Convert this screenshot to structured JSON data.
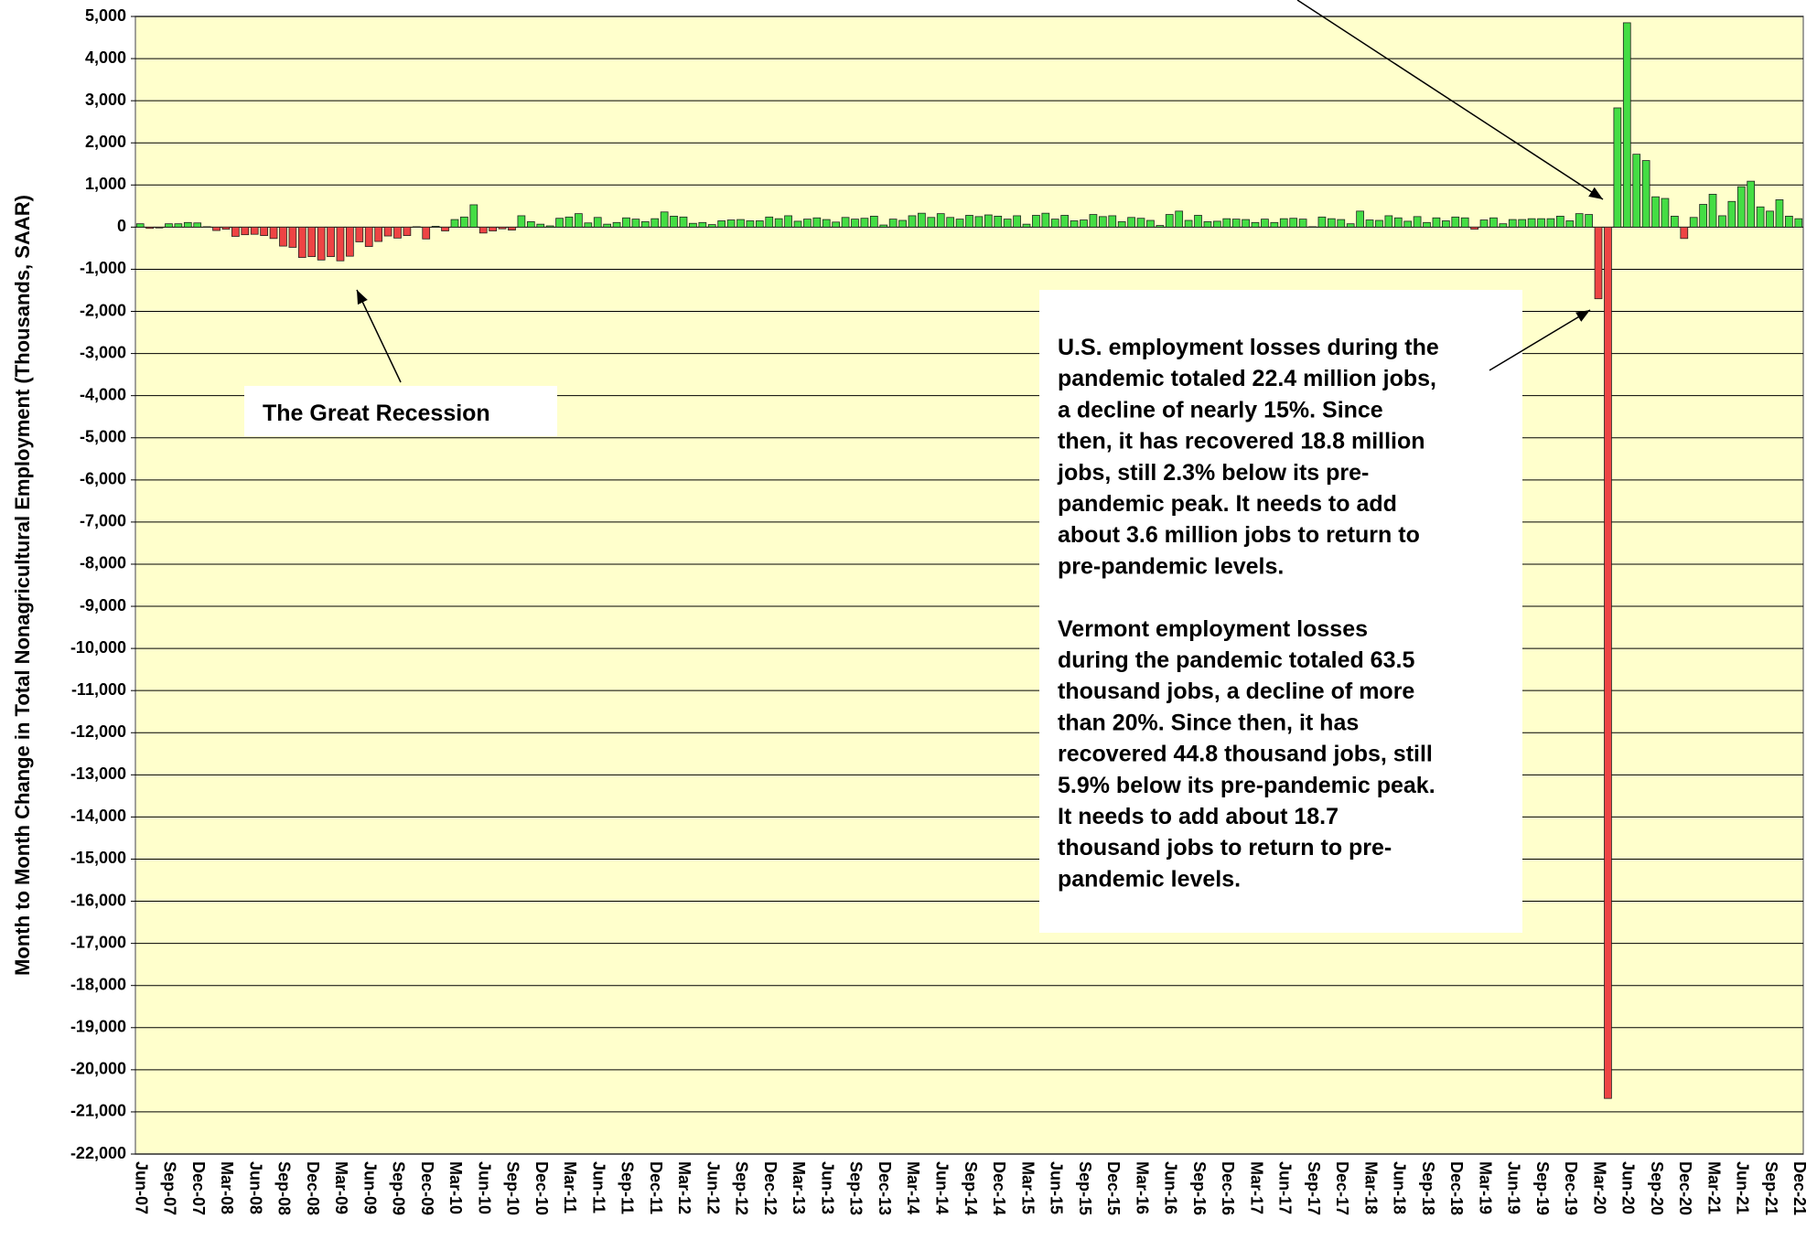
{
  "chart_data": {
    "type": "bar",
    "ylabel": "Month to Month Change in Total Nonagricultural Employment (Thousands, SAAR)",
    "categories": [
      "Jun-07",
      null,
      null,
      "Sep-07",
      null,
      null,
      "Dec-07",
      null,
      null,
      "Mar-08",
      null,
      null,
      "Jun-08",
      null,
      null,
      "Sep-08",
      null,
      null,
      "Dec-08",
      null,
      null,
      "Mar-09",
      null,
      null,
      "Jun-09",
      null,
      null,
      "Sep-09",
      null,
      null,
      "Dec-09",
      null,
      null,
      "Mar-10",
      null,
      null,
      "Jun-10",
      null,
      null,
      "Sep-10",
      null,
      null,
      "Dec-10",
      null,
      null,
      "Mar-11",
      null,
      null,
      "Jun-11",
      null,
      null,
      "Sep-11",
      null,
      null,
      "Dec-11",
      null,
      null,
      "Mar-12",
      null,
      null,
      "Jun-12",
      null,
      null,
      "Sep-12",
      null,
      null,
      "Dec-12",
      null,
      null,
      "Mar-13",
      null,
      null,
      "Jun-13",
      null,
      null,
      "Sep-13",
      null,
      null,
      "Dec-13",
      null,
      null,
      "Mar-14",
      null,
      null,
      "Jun-14",
      null,
      null,
      "Sep-14",
      null,
      null,
      "Dec-14",
      null,
      null,
      "Mar-15",
      null,
      null,
      "Jun-15",
      null,
      null,
      "Sep-15",
      null,
      null,
      "Dec-15",
      null,
      null,
      "Mar-16",
      null,
      null,
      "Jun-16",
      null,
      null,
      "Sep-16",
      null,
      null,
      "Dec-16",
      null,
      null,
      "Mar-17",
      null,
      null,
      "Jun-17",
      null,
      null,
      "Sep-17",
      null,
      null,
      "Dec-17",
      null,
      null,
      "Mar-18",
      null,
      null,
      "Jun-18",
      null,
      null,
      "Sep-18",
      null,
      null,
      "Dec-18",
      null,
      null,
      "Mar-19",
      null,
      null,
      "Jun-19",
      null,
      null,
      "Sep-19",
      null,
      null,
      "Dec-19",
      null,
      null,
      "Mar-20",
      null,
      null,
      "Jun-20",
      null,
      null,
      "Sep-20",
      null,
      null,
      "Dec-20",
      null,
      null,
      "Mar-21",
      null,
      null,
      "Jun-21",
      null,
      null,
      "Sep-21",
      null,
      null,
      "Dec-21"
    ],
    "values": [
      80,
      -30,
      -20,
      80,
      80,
      110,
      100,
      10,
      -80,
      -50,
      -220,
      -180,
      -170,
      -200,
      -270,
      -450,
      -480,
      -720,
      -700,
      -780,
      -700,
      -800,
      -690,
      -350,
      -460,
      -340,
      -210,
      -260,
      -200,
      10,
      -280,
      20,
      -90,
      180,
      240,
      530,
      -140,
      -90,
      -40,
      -70,
      270,
      130,
      70,
      30,
      210,
      240,
      320,
      100,
      230,
      70,
      110,
      220,
      190,
      130,
      200,
      360,
      260,
      240,
      90,
      110,
      60,
      150,
      170,
      180,
      150,
      150,
      240,
      200,
      270,
      140,
      190,
      220,
      180,
      120,
      230,
      190,
      210,
      260,
      50,
      190,
      160,
      270,
      330,
      230,
      320,
      230,
      190,
      280,
      250,
      290,
      260,
      190,
      270,
      70,
      280,
      330,
      190,
      280,
      150,
      170,
      300,
      250,
      270,
      130,
      230,
      210,
      160,
      40,
      300,
      380,
      160,
      280,
      130,
      140,
      200,
      190,
      180,
      110,
      190,
      110,
      200,
      210,
      190,
      10,
      240,
      200,
      180,
      80,
      380,
      170,
      160,
      270,
      220,
      140,
      250,
      110,
      220,
      150,
      240,
      220,
      -50,
      170,
      220,
      80,
      180,
      180,
      200,
      200,
      200,
      260,
      150,
      320,
      300,
      -1700,
      -20680,
      2830,
      4850,
      1730,
      1580,
      720,
      680,
      260,
      -270,
      230,
      540,
      780,
      270,
      610,
      960,
      1090,
      480,
      380,
      650,
      260,
      200
    ],
    "positive_color": "#44dd44",
    "negative_color": "#ee4444",
    "background": "#ffffcc",
    "ylim": [
      -22000,
      5000
    ],
    "yticks": [
      {
        "value": -22000,
        "label": "-22,000"
      },
      {
        "value": -21000,
        "label": "-21,000"
      },
      {
        "value": -20000,
        "label": "-20,000"
      },
      {
        "value": -19000,
        "label": "-19,000"
      },
      {
        "value": -18000,
        "label": "-18,000"
      },
      {
        "value": -17000,
        "label": "-17,000"
      },
      {
        "value": -16000,
        "label": "-16,000"
      },
      {
        "value": -15000,
        "label": "-15,000"
      },
      {
        "value": -14000,
        "label": "-14,000"
      },
      {
        "value": -13000,
        "label": "-13,000"
      },
      {
        "value": -12000,
        "label": "-12,000"
      },
      {
        "value": -11000,
        "label": "-11,000"
      },
      {
        "value": -10000,
        "label": "-10,000"
      },
      {
        "value": -9000,
        "label": "-9,000"
      },
      {
        "value": -8000,
        "label": "-8,000"
      },
      {
        "value": -7000,
        "label": "-7,000"
      },
      {
        "value": -6000,
        "label": "-6,000"
      },
      {
        "value": -5000,
        "label": "-5,000"
      },
      {
        "value": -4000,
        "label": "-4,000"
      },
      {
        "value": -3000,
        "label": "-3,000"
      },
      {
        "value": -2000,
        "label": "-2,000"
      },
      {
        "value": -1000,
        "label": "-1,000"
      },
      0,
      {
        "value": 1000,
        "label": "1,000"
      },
      {
        "value": 2000,
        "label": "2,000"
      },
      {
        "value": 3000,
        "label": "3,000"
      },
      {
        "value": 4000,
        "label": "4,000"
      },
      {
        "value": 5000,
        "label": "5,000"
      }
    ],
    "grid": true,
    "annotations": [
      {
        "lines": [
          "The Great Recession"
        ]
      },
      {
        "lines": [
          "U.S. employment losses during the",
          "pandemic totaled 22.4 million jobs,",
          "a decline of nearly 15%.  Since",
          "then, it has recovered 18.8 million",
          "jobs, still 2.3% below its pre-",
          "pandemic peak.  It needs to add",
          "about 3.6 million jobs to return to",
          "pre-pandemic levels.",
          "",
          "Vermont employment losses",
          "during the pandemic totaled 63.5",
          "thousand jobs, a decline of more",
          "than 20%.  Since then, it has",
          "recovered 44.8 thousand jobs, still",
          "5.9% below its pre-pandemic peak.",
          "It needs to add about 18.7",
          "thousand jobs to return to pre-",
          "pandemic levels."
        ]
      }
    ]
  }
}
